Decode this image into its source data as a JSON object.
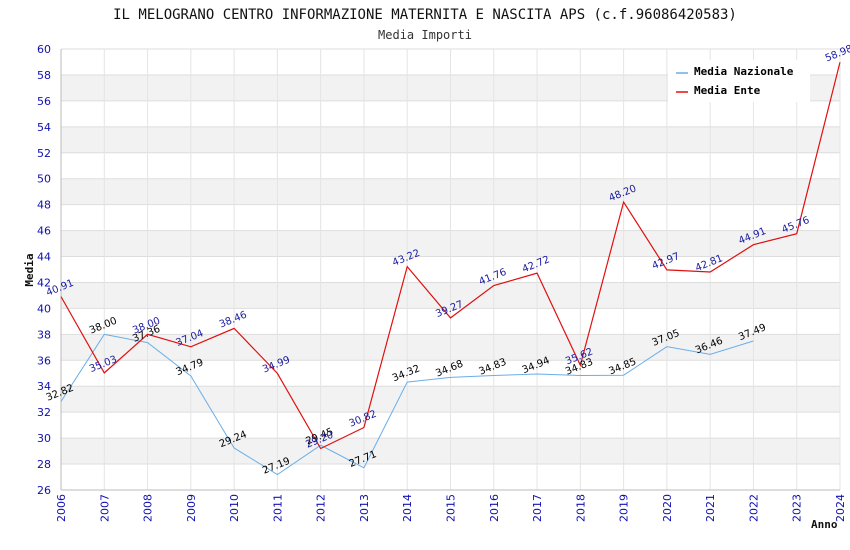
{
  "chart_data": {
    "type": "line",
    "title": "IL MELOGRANO CENTRO INFORMAZIONE MATERNITA E NASCITA APS (c.f.96086420583)",
    "subtitle": "Media Importi",
    "xlabel": "Anno",
    "ylabel": "Media",
    "ylim": [
      26,
      60
    ],
    "ytick_step": 2,
    "yticks": [
      "26",
      "28",
      "30",
      "32",
      "34",
      "36",
      "38",
      "40",
      "42",
      "44",
      "46",
      "48",
      "50",
      "52",
      "54",
      "56",
      "58",
      "60"
    ],
    "categories": [
      "2006",
      "2007",
      "2008",
      "2009",
      "2010",
      "2011",
      "2012",
      "2013",
      "2014",
      "2015",
      "2016",
      "2017",
      "2018",
      "2019",
      "2020",
      "2021",
      "2022",
      "2023",
      "2024"
    ],
    "legend_position": "top-right",
    "series": [
      {
        "name": "Media Nazionale",
        "color": "#6aaee8",
        "values": [
          32.82,
          38.0,
          37.36,
          34.79,
          29.24,
          27.19,
          29.45,
          27.71,
          34.32,
          34.68,
          34.83,
          34.94,
          34.83,
          34.85,
          37.05,
          36.46,
          37.49,
          null,
          null
        ],
        "labels": [
          "32.82",
          "38.00",
          "37.36",
          "34.79",
          "29.24",
          "27.19",
          "29.45",
          "27.71",
          "34.32",
          "34.68",
          "34.83",
          "34.94",
          "34.83",
          "34.85",
          "37.05",
          "36.46",
          "37.49",
          "",
          ""
        ]
      },
      {
        "name": "Media Ente",
        "color": "#e01010",
        "values": [
          40.91,
          35.03,
          38.0,
          37.04,
          38.46,
          34.99,
          29.2,
          30.82,
          43.22,
          39.27,
          41.76,
          42.72,
          35.62,
          48.2,
          42.97,
          42.81,
          44.91,
          45.76,
          58.98
        ],
        "labels": [
          "40.91",
          "35.03",
          "38.00",
          "37.04",
          "38.46",
          "34.99",
          "29.20",
          "30.82",
          "43.22",
          "39.27",
          "41.76",
          "42.72",
          "35.62",
          "48.20",
          "42.97",
          "42.81",
          "44.91",
          "45.76",
          "58.98"
        ]
      }
    ]
  }
}
